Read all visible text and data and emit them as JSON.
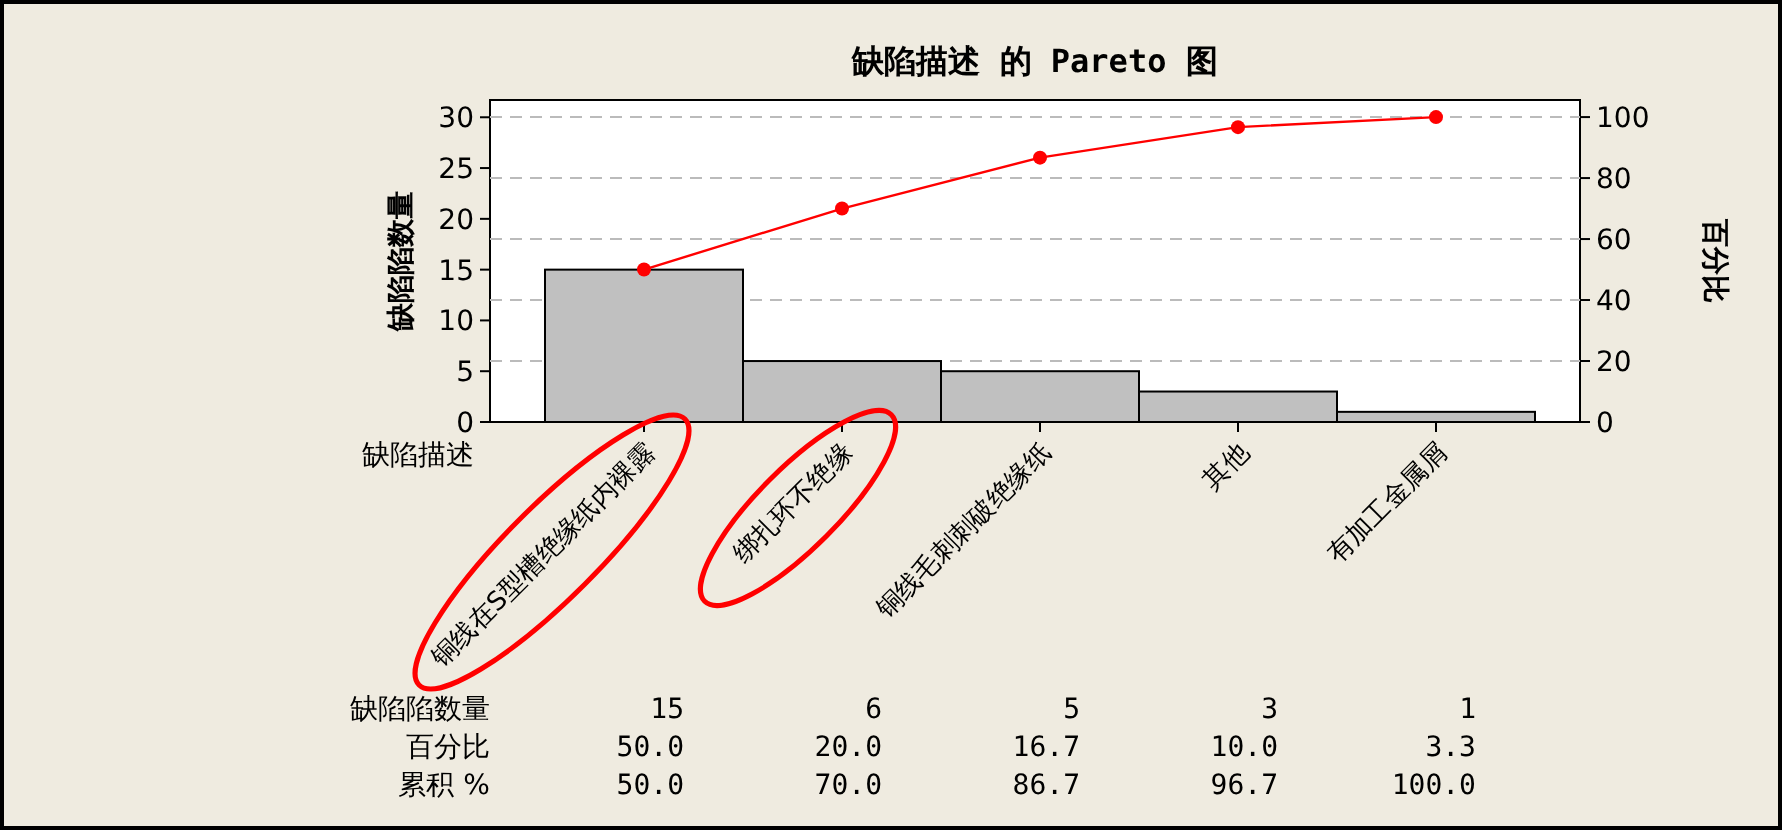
{
  "chart_data": {
    "type": "bar",
    "title": "缺陷描述 的 Pareto 图",
    "xlabel": "缺陷描述",
    "ylabel": "缺陷陷数量",
    "y2label": "百分比",
    "categories": [
      "铜线在S型槽绝缘纸内裸露",
      "绑扎环不绝缘",
      "铜线毛刺刺破绝缘纸",
      "其他",
      "有加工金属屑"
    ],
    "series": [
      {
        "color": "#c0c0c0",
        "values": [
          15,
          6,
          5,
          3,
          1
        ],
        "value_labels": [
          "15",
          "6",
          "5",
          "3",
          "1"
        ]
      },
      {
        "type": "line",
        "axis": "y2",
        "color": "#ff0000",
        "values": [
          50,
          70,
          86.7,
          96.7,
          100
        ],
        "value_labels": [
          "50.0",
          "70.0",
          "86.7",
          "96.7",
          "100.0"
        ]
      }
    ],
    "annotations": [
      "缺陷陷数量",
      "百分比",
      "50.0",
      "20.0",
      "16.7",
      "10.0",
      "3.3",
      "累积 %"
    ],
    "ylim": [
      0,
      31.7
    ],
    "yticks": [
      0,
      5,
      10,
      15,
      20,
      25,
      30
    ],
    "y2lim": [
      0,
      105.6
    ],
    "y2ticks": [
      0,
      20,
      40,
      60,
      80,
      100
    ],
    "grid": true,
    "marker": "circle",
    "line_style": "solid"
  }
}
